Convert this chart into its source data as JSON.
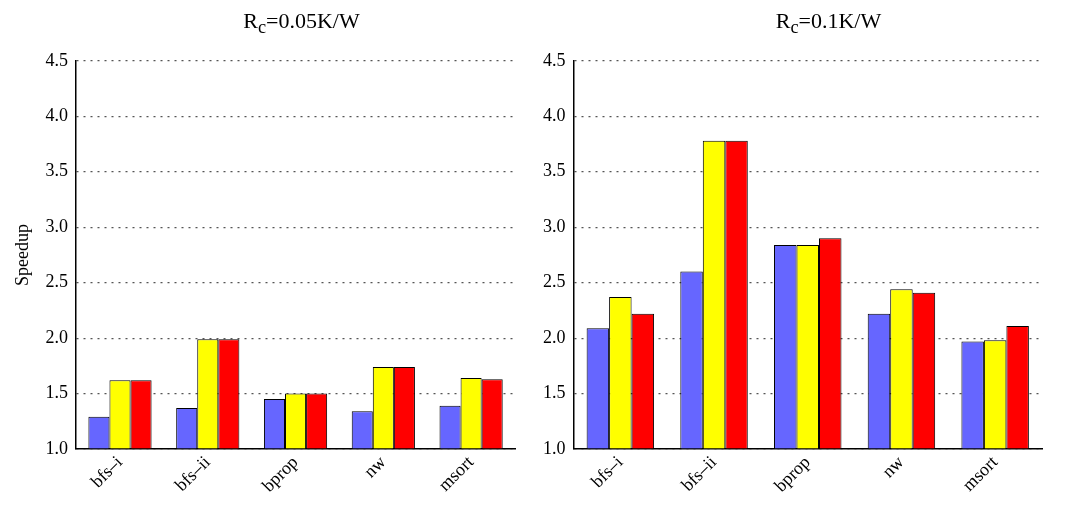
{
  "chart_data": [
    {
      "type": "bar",
      "title": "R$_{c}$=0.05K/W",
      "ylabel": "Speedup",
      "categories": [
        "bfs–i",
        "bfs–ii",
        "bprop",
        "nw",
        "msort"
      ],
      "series": [
        {
          "color": "#6666ff",
          "values": [
            1.29,
            1.37,
            1.45,
            1.34,
            1.39
          ]
        },
        {
          "color": "#ffff00",
          "values": [
            1.62,
            1.99,
            1.5,
            1.74,
            1.64
          ]
        },
        {
          "color": "#ff0000",
          "values": [
            1.62,
            1.99,
            1.5,
            1.74,
            1.63
          ]
        }
      ],
      "ylim": [
        1,
        4.5
      ],
      "yticks": [
        {
          "value": 1,
          "label": "1.0"
        },
        {
          "value": 1.5,
          "label": "1.5"
        },
        {
          "value": 2,
          "label": "2.0"
        },
        {
          "value": 2.5,
          "label": "2.5"
        },
        {
          "value": 3,
          "label": "3.0"
        },
        {
          "value": 3.5,
          "label": "3.5"
        },
        {
          "value": 4,
          "label": "4.0"
        },
        {
          "value": 4.5,
          "label": "4.5"
        }
      ],
      "grid": "y",
      "line_style": "dotted"
    },
    {
      "type": "bar",
      "title": "R$_{c}$=0.1K/W",
      "categories": [
        "bfs–i",
        "bfs–ii",
        "bprop",
        "nw",
        "msort"
      ],
      "series": [
        {
          "color": "#6666ff",
          "values": [
            2.09,
            2.6,
            2.84,
            2.22,
            1.97
          ]
        },
        {
          "color": "#ffff00",
          "values": [
            2.37,
            3.78,
            2.84,
            2.44,
            1.98
          ]
        },
        {
          "color": "#ff0000",
          "values": [
            2.22,
            3.78,
            2.9,
            2.41,
            2.11
          ]
        }
      ],
      "ylim": [
        1,
        4.5
      ],
      "yticks": [
        {
          "value": 1,
          "label": "1.0"
        },
        {
          "value": 1.5,
          "label": "1.5"
        },
        {
          "value": 2,
          "label": "2.0"
        },
        {
          "value": 2.5,
          "label": "2.5"
        },
        {
          "value": 3,
          "label": "3.0"
        },
        {
          "value": 3.5,
          "label": "3.5"
        },
        {
          "value": 4,
          "label": "4.0"
        },
        {
          "value": 4.5,
          "label": "4.5"
        }
      ],
      "grid": "y",
      "line_style": "dotted"
    }
  ]
}
